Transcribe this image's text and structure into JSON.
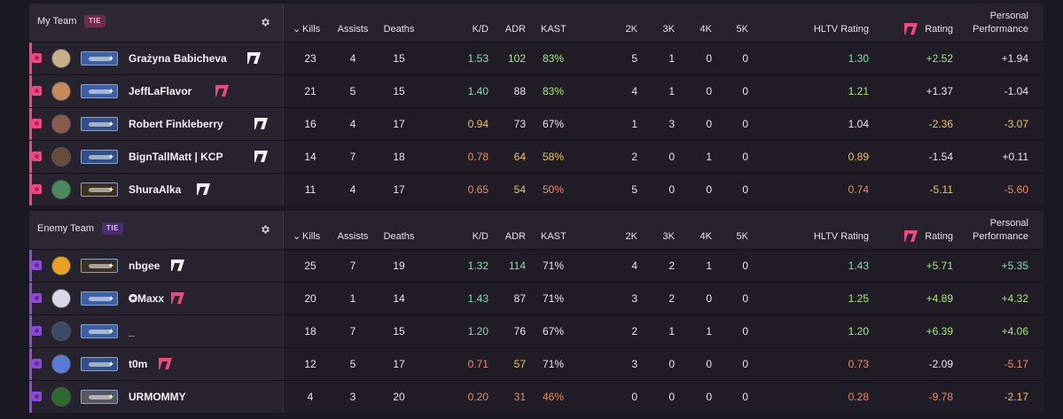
{
  "columns": {
    "kills": "Kills",
    "assists": "Assists",
    "deaths": "Deaths",
    "kd": "K/D",
    "adr": "ADR",
    "kast": "KAST",
    "k2": "2K",
    "k3": "3K",
    "k4": "4K",
    "k5": "5K",
    "hltv": "HLTV Rating",
    "rating": "Rating",
    "pp_line1": "Personal",
    "pp_line2": "Performance"
  },
  "colors": {
    "my_team_accent": "#f2467e",
    "enemy_team_accent": "#8b4bd6",
    "good": "#7ee0b0",
    "mid": "#f2c458",
    "bad": "#f28a62",
    "light_good": "#a6e878"
  },
  "my_team": {
    "name": "My Team",
    "badge": "TIE",
    "players": [
      {
        "name": "Grażyna Babicheva",
        "avatar_color": "#c9b08a",
        "rank_color": "#3d5fa8",
        "logo": "white",
        "kills": "23",
        "assists": "4",
        "deaths": "15",
        "kd": "1.53",
        "adr": "102",
        "kast": "83%",
        "k2": "5",
        "k3": "1",
        "k4": "0",
        "k5": "0",
        "hltv": "1.30",
        "rating": "+2.52",
        "pp": "+1.94",
        "c": {
          "kd": "g",
          "adr": "lg",
          "kast": "lg",
          "hltv": "g",
          "rating": "lg",
          "pp": "w"
        }
      },
      {
        "name": "JeffLaFlavor",
        "avatar_color": "#c88a5a",
        "rank_color": "#3d5fa8",
        "logo": "pink",
        "kills": "21",
        "assists": "5",
        "deaths": "15",
        "kd": "1.40",
        "adr": "88",
        "kast": "83%",
        "k2": "4",
        "k3": "1",
        "k4": "0",
        "k5": "0",
        "hltv": "1.21",
        "rating": "+1.37",
        "pp": "-1.04",
        "c": {
          "kd": "g",
          "adr": "w",
          "kast": "lg",
          "hltv": "lg",
          "rating": "w",
          "pp": "w"
        }
      },
      {
        "name": "Robert Finkleberry",
        "avatar_color": "#8a5a4a",
        "rank_color": "#2f4f86",
        "logo": "white",
        "kills": "16",
        "assists": "4",
        "deaths": "17",
        "kd": "0.94",
        "adr": "73",
        "kast": "67%",
        "k2": "1",
        "k3": "3",
        "k4": "0",
        "k5": "0",
        "hltv": "1.04",
        "rating": "-2.36",
        "pp": "-3.07",
        "c": {
          "kd": "y",
          "adr": "w",
          "kast": "w",
          "hltv": "w",
          "rating": "y",
          "pp": "y"
        }
      },
      {
        "name": "BignTallMatt | KCP",
        "avatar_color": "#6a4a3a",
        "rank_color": "#2f4f86",
        "logo": "white",
        "kills": "14",
        "assists": "7",
        "deaths": "18",
        "kd": "0.78",
        "adr": "64",
        "kast": "58%",
        "k2": "2",
        "k3": "0",
        "k4": "1",
        "k5": "0",
        "hltv": "0.89",
        "rating": "-1.54",
        "pp": "+0.11",
        "c": {
          "kd": "o",
          "adr": "y",
          "kast": "y",
          "hltv": "y",
          "rating": "w",
          "pp": "w"
        }
      },
      {
        "name": "ShuraAlka",
        "avatar_color": "#4a8a5a",
        "rank_color": "#3a3020",
        "logo": "white",
        "kills": "11",
        "assists": "4",
        "deaths": "17",
        "kd": "0.65",
        "adr": "54",
        "kast": "50%",
        "k2": "5",
        "k3": "0",
        "k4": "0",
        "k5": "0",
        "hltv": "0.74",
        "rating": "-5.11",
        "pp": "-5.60",
        "c": {
          "kd": "o",
          "adr": "y",
          "kast": "o",
          "hltv": "o",
          "rating": "y",
          "pp": "o"
        }
      }
    ]
  },
  "enemy_team": {
    "name": "Enemy Team",
    "badge": "TIE",
    "players": [
      {
        "name": "nbgee",
        "avatar_color": "#e8a020",
        "rank_color": "#3a3020",
        "logo": "white",
        "kills": "25",
        "assists": "7",
        "deaths": "19",
        "kd": "1.32",
        "adr": "114",
        "kast": "71%",
        "k2": "4",
        "k3": "2",
        "k4": "1",
        "k5": "0",
        "hltv": "1.43",
        "rating": "+5.71",
        "pp": "+5.35",
        "c": {
          "kd": "g",
          "adr": "g",
          "kast": "w",
          "hltv": "g",
          "rating": "lg",
          "pp": "g"
        }
      },
      {
        "name": "✪Maxx",
        "avatar_color": "#d8d8e8",
        "rank_color": "#3d5fa8",
        "logo": "pink",
        "kills": "20",
        "assists": "1",
        "deaths": "14",
        "kd": "1.43",
        "adr": "87",
        "kast": "71%",
        "k2": "3",
        "k3": "2",
        "k4": "0",
        "k5": "0",
        "hltv": "1.25",
        "rating": "+4.89",
        "pp": "+4.32",
        "c": {
          "kd": "g",
          "adr": "w",
          "kast": "w",
          "hltv": "lg",
          "rating": "lg",
          "pp": "lg"
        }
      },
      {
        "name": "_",
        "avatar_color": "#3a4a6a",
        "rank_color": "#3d5fa8",
        "logo": "none",
        "kills": "18",
        "assists": "7",
        "deaths": "15",
        "kd": "1.20",
        "adr": "76",
        "kast": "67%",
        "k2": "2",
        "k3": "1",
        "k4": "1",
        "k5": "0",
        "hltv": "1.20",
        "rating": "+6.39",
        "pp": "+4.06",
        "c": {
          "kd": "g",
          "adr": "w",
          "kast": "w",
          "hltv": "lg",
          "rating": "lg",
          "pp": "lg"
        }
      },
      {
        "name": "t0m",
        "avatar_color": "#5a7ad8",
        "rank_color": "#2f4f86",
        "logo": "pink",
        "kills": "12",
        "assists": "5",
        "deaths": "17",
        "kd": "0.71",
        "adr": "57",
        "kast": "71%",
        "k2": "3",
        "k3": "0",
        "k4": "0",
        "k5": "0",
        "hltv": "0.73",
        "rating": "-2.09",
        "pp": "-5.17",
        "c": {
          "kd": "o",
          "adr": "y",
          "kast": "w",
          "hltv": "o",
          "rating": "w",
          "pp": "o"
        }
      },
      {
        "name": "URMOMMY",
        "avatar_color": "#2a6a2a",
        "rank_color": "#555560",
        "logo": "none",
        "kills": "4",
        "assists": "3",
        "deaths": "20",
        "kd": "0.20",
        "adr": "31",
        "kast": "46%",
        "k2": "0",
        "k3": "0",
        "k4": "0",
        "k5": "0",
        "hltv": "0.28",
        "rating": "-9.78",
        "pp": "-2.17",
        "c": {
          "kd": "o",
          "adr": "o",
          "kast": "o",
          "hltv": "o",
          "rating": "o",
          "pp": "y"
        }
      }
    ]
  }
}
